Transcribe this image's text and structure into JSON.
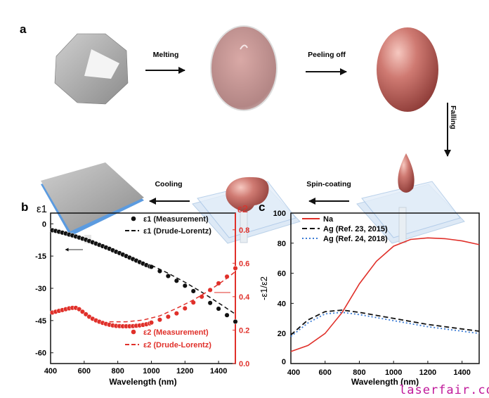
{
  "panel_a": {
    "label": "a",
    "steps": [
      "Melting",
      "Peeling off",
      "Falling",
      "Spin-coating",
      "Cooling"
    ]
  },
  "watermark": "laserfair.com",
  "chart_data": [
    {
      "panel": "b",
      "type": "scatter",
      "xlabel": "Wavelength (nm)",
      "ylabel_left": "ε1",
      "ylabel_right": "ε2",
      "xlim": [
        400,
        1500
      ],
      "xticks": [
        400,
        600,
        800,
        1000,
        1200,
        1400
      ],
      "ylim_left": [
        -65,
        5
      ],
      "yticks_left": [
        0,
        -15,
        -30,
        -45,
        -60
      ],
      "ylim_right": [
        0,
        0.9
      ],
      "yticks_right": [
        0.0,
        0.2,
        0.4,
        0.6,
        0.8
      ],
      "colors": {
        "eps1": "#111111",
        "eps2": "#e0302a"
      },
      "series": [
        {
          "name": "ε1 (Measurement)",
          "axis": "left",
          "style": "markers",
          "x": [
            410,
            430,
            450,
            470,
            490,
            510,
            530,
            550,
            570,
            590,
            610,
            630,
            650,
            670,
            690,
            710,
            730,
            750,
            770,
            790,
            810,
            830,
            850,
            870,
            890,
            910,
            930,
            950,
            970,
            990,
            1000,
            1050,
            1100,
            1150,
            1200,
            1250,
            1300,
            1350,
            1400,
            1450,
            1500
          ],
          "y": [
            -3,
            -3.3,
            -3.7,
            -4.1,
            -4.5,
            -5,
            -5.4,
            -5.9,
            -6.4,
            -6.9,
            -7.4,
            -8,
            -8.6,
            -9.2,
            -9.8,
            -10.4,
            -11,
            -11.6,
            -12.3,
            -13,
            -13.6,
            -14.3,
            -15,
            -15.7,
            -16.4,
            -17.1,
            -17.8,
            -18.5,
            -19.2,
            -19.8,
            -20,
            -22,
            -24.3,
            -26.5,
            -28.8,
            -31.3,
            -34,
            -36.8,
            -39.5,
            -42.5,
            -45.5
          ]
        },
        {
          "name": "ε1 (Drude-Lorentz)",
          "axis": "left",
          "style": "dashed",
          "x": [
            1000,
            1100,
            1200,
            1300,
            1400,
            1500
          ],
          "y": [
            -19.3,
            -23,
            -27.2,
            -31.8,
            -36.8,
            -42
          ]
        },
        {
          "name": "ε2 (Measurement)",
          "axis": "right",
          "style": "markers",
          "x": [
            410,
            430,
            450,
            470,
            490,
            510,
            530,
            550,
            570,
            590,
            610,
            630,
            650,
            670,
            690,
            710,
            730,
            750,
            770,
            790,
            810,
            830,
            850,
            870,
            890,
            910,
            930,
            950,
            970,
            990,
            1000,
            1050,
            1100,
            1150,
            1200,
            1250,
            1300,
            1350,
            1400,
            1450,
            1500
          ],
          "y": [
            0.305,
            0.31,
            0.315,
            0.32,
            0.325,
            0.33,
            0.333,
            0.333,
            0.325,
            0.31,
            0.295,
            0.28,
            0.268,
            0.258,
            0.25,
            0.243,
            0.237,
            0.232,
            0.228,
            0.225,
            0.224,
            0.223,
            0.223,
            0.223,
            0.224,
            0.226,
            0.228,
            0.231,
            0.235,
            0.24,
            0.245,
            0.262,
            0.28,
            0.3,
            0.33,
            0.365,
            0.4,
            0.44,
            0.48,
            0.52,
            0.57
          ]
        },
        {
          "name": "ε2 (Drude-Lorentz)",
          "axis": "right",
          "style": "dashed",
          "x": [
            750,
            850,
            950,
            1050,
            1150,
            1250,
            1350,
            1450,
            1500
          ],
          "y": [
            0.25,
            0.25,
            0.26,
            0.285,
            0.33,
            0.38,
            0.44,
            0.51,
            0.55
          ]
        }
      ]
    },
    {
      "panel": "c",
      "type": "line",
      "xlabel": "Wavelength (nm)",
      "ylabel": "-ε1/ε2",
      "xlim": [
        400,
        1500
      ],
      "xticks": [
        400,
        600,
        800,
        1000,
        1200,
        1400
      ],
      "ylim": [
        0,
        100
      ],
      "yticks": [
        0,
        20,
        40,
        60,
        80,
        100
      ],
      "legend": "top-left",
      "x": [
        400,
        500,
        600,
        700,
        800,
        900,
        1000,
        1100,
        1200,
        1300,
        1400,
        1500
      ],
      "series": [
        {
          "name": "Na",
          "color": "#e0302a",
          "style": "solid",
          "values": [
            8,
            12,
            20,
            34,
            53,
            68,
            78,
            82.5,
            83.5,
            83,
            81.5,
            79
          ]
        },
        {
          "name": "Ag (Ref. 23, 2015)",
          "color": "#111111",
          "style": "dashed",
          "values": [
            19,
            29,
            34.5,
            35.5,
            34,
            32,
            30,
            28,
            26,
            24.5,
            23,
            21.5
          ]
        },
        {
          "name": "Ag (Ref. 24, 2018)",
          "color": "#3a7bd5",
          "style": "dotted",
          "values": [
            18,
            27,
            33,
            34,
            32.5,
            30.5,
            28.5,
            26.5,
            24.5,
            23,
            21.5,
            20
          ]
        }
      ]
    }
  ]
}
